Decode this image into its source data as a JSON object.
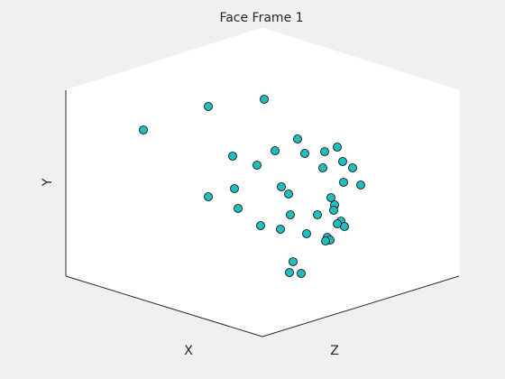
{
  "chart_data": {
    "type": "scatter",
    "title": "Face Frame 1",
    "xlabel": "X",
    "ylabel": "Y",
    "zlabel": "Z",
    "axis_ranges": "not printed",
    "grid": false,
    "marker": {
      "shape": "circle",
      "face_color": "#1fbfbf",
      "edge_color": "#000000"
    },
    "points_projected": [
      [
        159,
        144
      ],
      [
        231,
        118
      ],
      [
        293,
        110
      ],
      [
        330,
        154
      ],
      [
        305,
        167
      ],
      [
        258,
        173
      ],
      [
        285,
        183
      ],
      [
        338,
        170
      ],
      [
        360,
        168
      ],
      [
        374,
        163
      ],
      [
        380,
        179
      ],
      [
        391,
        186
      ],
      [
        358,
        186
      ],
      [
        381,
        202
      ],
      [
        400,
        205
      ],
      [
        312,
        207
      ],
      [
        260,
        209
      ],
      [
        231,
        218
      ],
      [
        320,
        215
      ],
      [
        367,
        219
      ],
      [
        371,
        227
      ],
      [
        264,
        231
      ],
      [
        322,
        238
      ],
      [
        352,
        238
      ],
      [
        370,
        233
      ],
      [
        378,
        245
      ],
      [
        382,
        251
      ],
      [
        374,
        248
      ],
      [
        289,
        250
      ],
      [
        311,
        254
      ],
      [
        340,
        259
      ],
      [
        363,
        263
      ],
      [
        366,
        266
      ],
      [
        361,
        267
      ],
      [
        325,
        290
      ],
      [
        321,
        302
      ],
      [
        334,
        303
      ]
    ]
  },
  "colors": {
    "figure_background": "#f0f0f0",
    "axes_background": "#ffffff",
    "box_edge": "#262626"
  }
}
